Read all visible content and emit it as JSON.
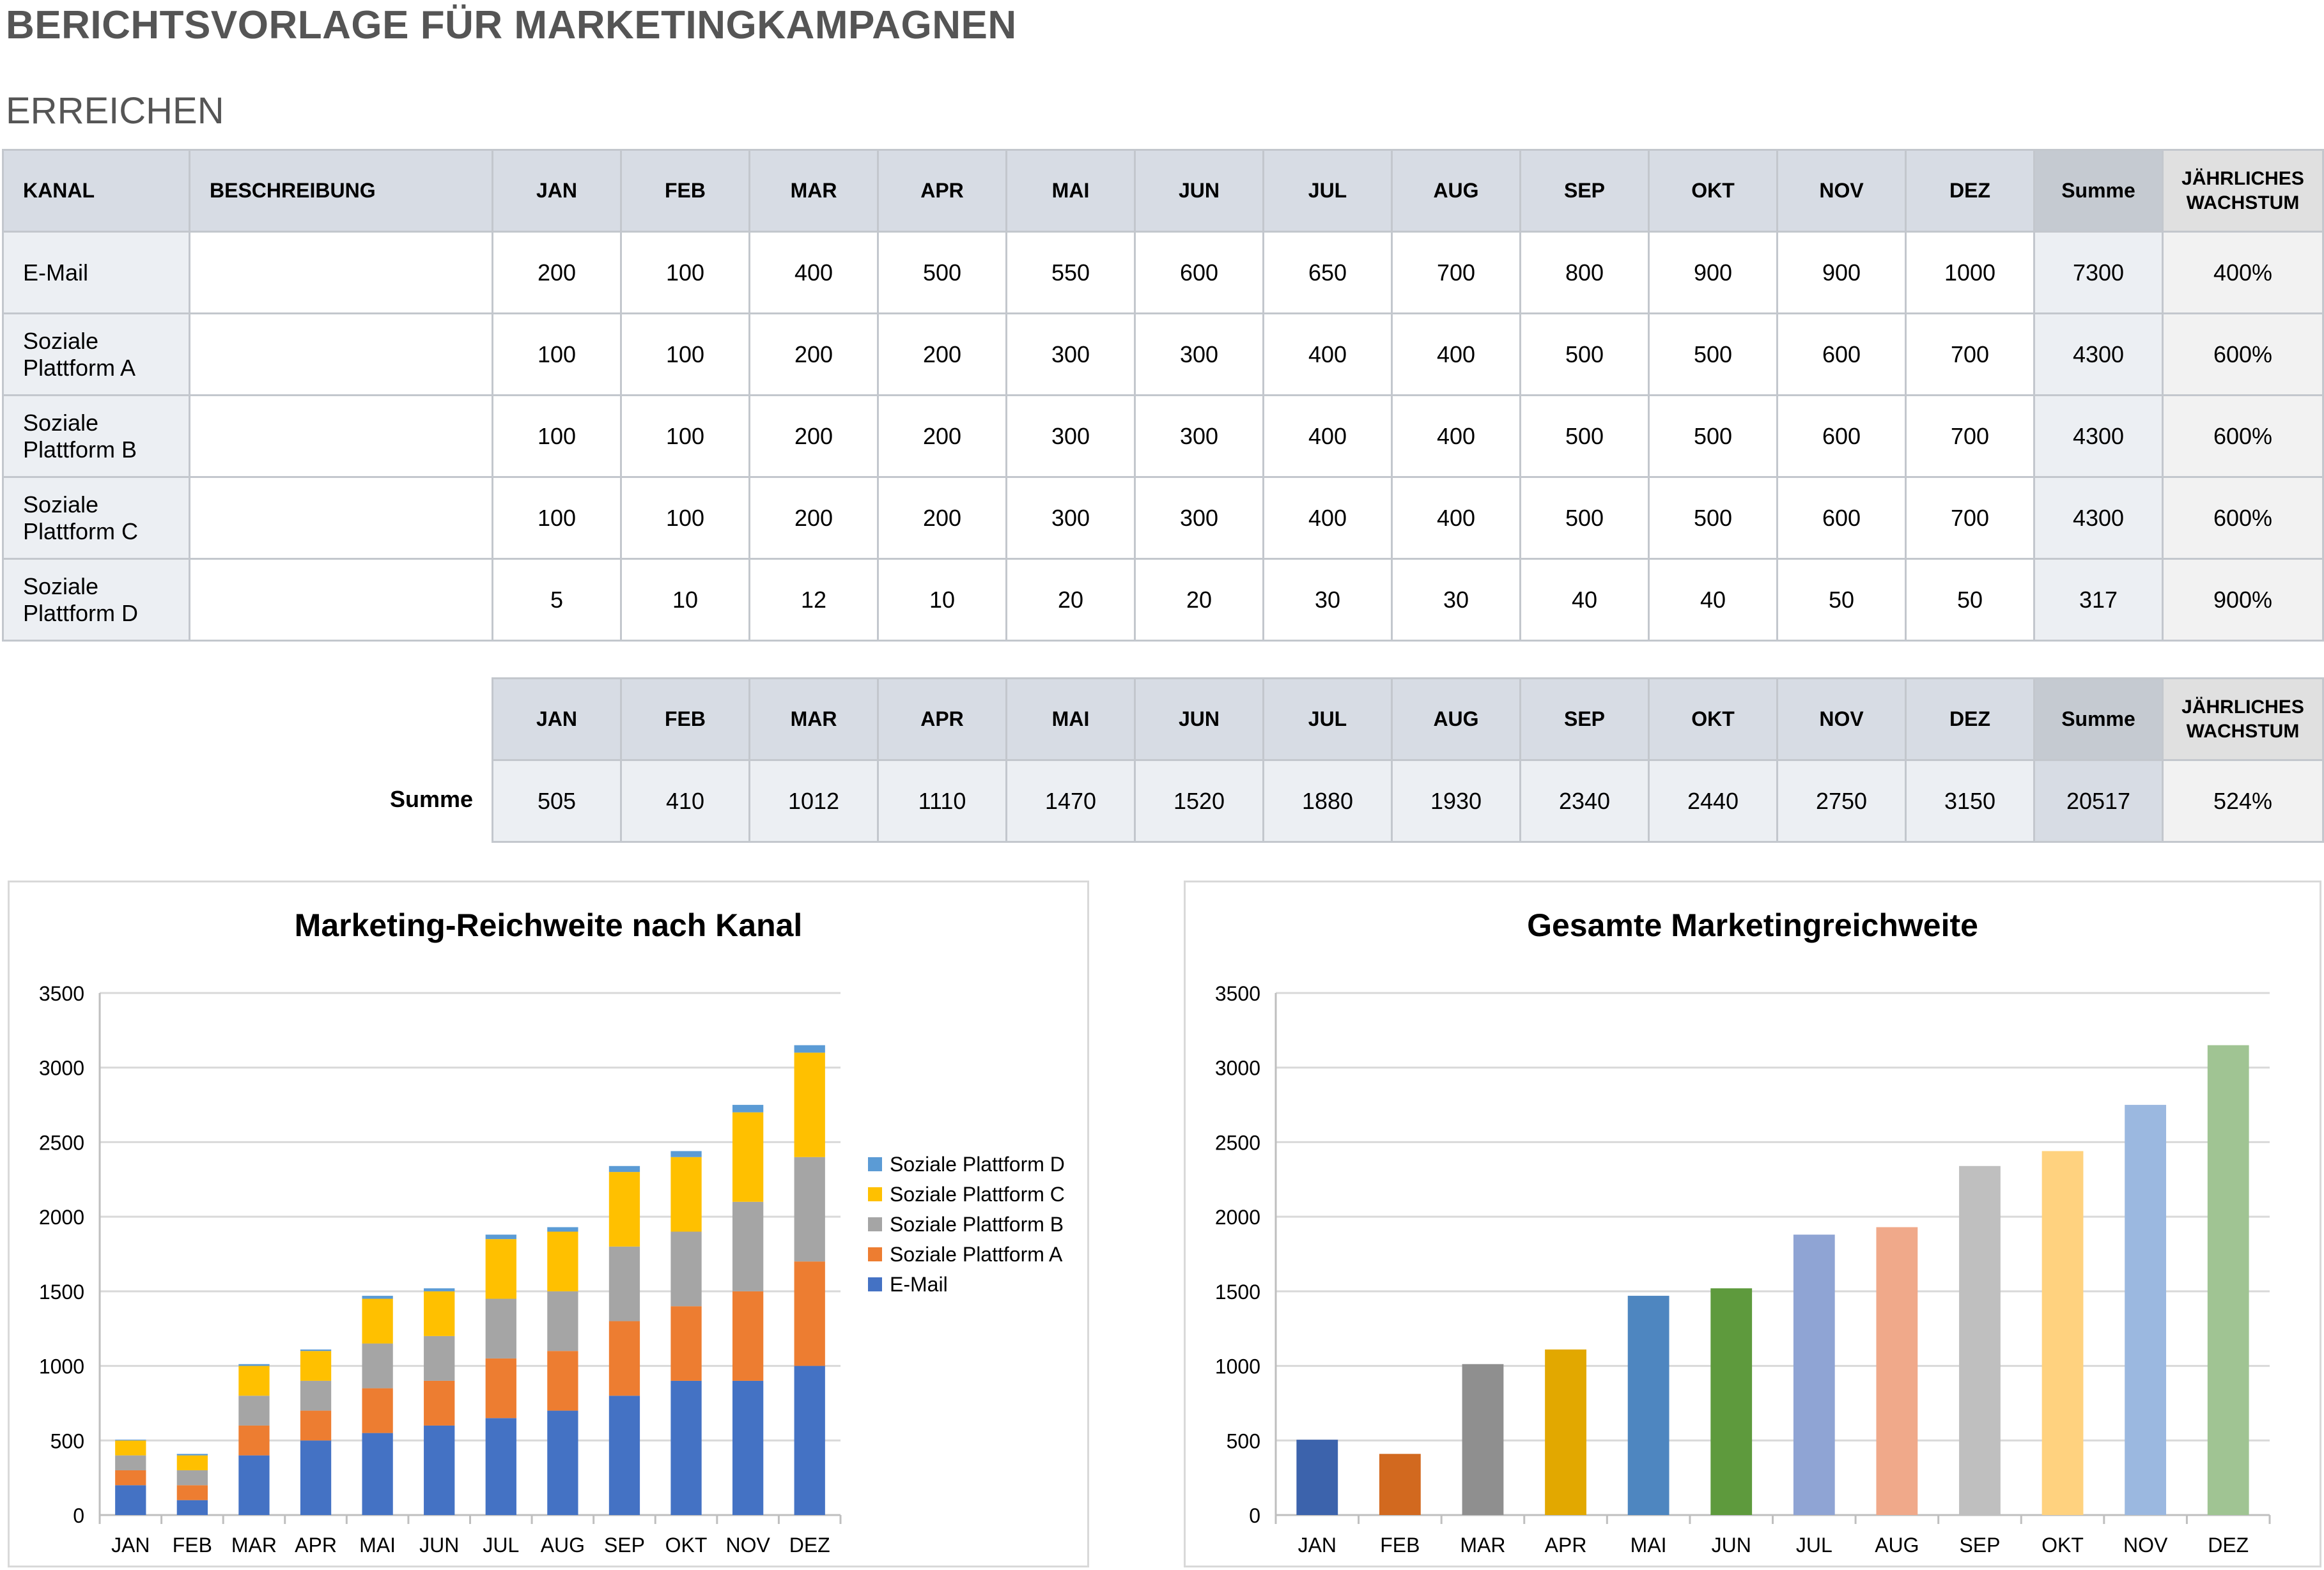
{
  "page": {
    "title": "BERICHTSVORLAGE FÜR MARKETINGKAMPAGNEN",
    "section": "ERREICHEN"
  },
  "table": {
    "headers": {
      "kanal": "KANAL",
      "beschreibung": "BESCHREIBUNG",
      "months": [
        "JAN",
        "FEB",
        "MAR",
        "APR",
        "MAI",
        "JUN",
        "JUL",
        "AUG",
        "SEP",
        "OKT",
        "NOV",
        "DEZ"
      ],
      "summe": "Summe",
      "wachstum_1": "JÄHRLICHES",
      "wachstum_2": "WACHSTUM"
    },
    "rows": [
      {
        "kanal_1": "E-Mail",
        "kanal_2": "",
        "beschreibung": "",
        "values": [
          "200",
          "100",
          "400",
          "500",
          "550",
          "600",
          "650",
          "700",
          "800",
          "900",
          "900",
          "1000"
        ],
        "summe": "7300",
        "wachstum": "400%"
      },
      {
        "kanal_1": "Soziale",
        "kanal_2": "Plattform A",
        "beschreibung": "",
        "values": [
          "100",
          "100",
          "200",
          "200",
          "300",
          "300",
          "400",
          "400",
          "500",
          "500",
          "600",
          "700"
        ],
        "summe": "4300",
        "wachstum": "600%"
      },
      {
        "kanal_1": "Soziale",
        "kanal_2": "Plattform B",
        "beschreibung": "",
        "values": [
          "100",
          "100",
          "200",
          "200",
          "300",
          "300",
          "400",
          "400",
          "500",
          "500",
          "600",
          "700"
        ],
        "summe": "4300",
        "wachstum": "600%"
      },
      {
        "kanal_1": "Soziale",
        "kanal_2": "Plattform C",
        "beschreibung": "",
        "values": [
          "100",
          "100",
          "200",
          "200",
          "300",
          "300",
          "400",
          "400",
          "500",
          "500",
          "600",
          "700"
        ],
        "summe": "4300",
        "wachstum": "600%"
      },
      {
        "kanal_1": "Soziale",
        "kanal_2": "Plattform D",
        "beschreibung": "",
        "values": [
          "5",
          "10",
          "12",
          "10",
          "20",
          "20",
          "30",
          "30",
          "40",
          "40",
          "50",
          "50"
        ],
        "summe": "317",
        "wachstum": "900%"
      }
    ]
  },
  "totals": {
    "label": "Summe",
    "values": [
      "505",
      "410",
      "1012",
      "1110",
      "1470",
      "1520",
      "1880",
      "1930",
      "2340",
      "2440",
      "2750",
      "3150"
    ],
    "summe": "20517",
    "wachstum": "524%"
  },
  "chart_data": [
    {
      "type": "bar",
      "stacked": true,
      "title": "Marketing-Reichweite nach Kanal",
      "categories": [
        "JAN",
        "FEB",
        "MAR",
        "APR",
        "MAI",
        "JUN",
        "JUL",
        "AUG",
        "SEP",
        "OKT",
        "NOV",
        "DEZ"
      ],
      "ylim": [
        0,
        3500
      ],
      "yticks": [
        0,
        500,
        1000,
        1500,
        2000,
        2500,
        3000,
        3500
      ],
      "grid": true,
      "legend_position": "right",
      "series": [
        {
          "name": "E-Mail",
          "color": "#4472c4",
          "values": [
            200,
            100,
            400,
            500,
            550,
            600,
            650,
            700,
            800,
            900,
            900,
            1000
          ]
        },
        {
          "name": "Soziale Plattform A",
          "color": "#ed7d31",
          "values": [
            100,
            100,
            200,
            200,
            300,
            300,
            400,
            400,
            500,
            500,
            600,
            700
          ]
        },
        {
          "name": "Soziale Plattform B",
          "color": "#a5a5a5",
          "values": [
            100,
            100,
            200,
            200,
            300,
            300,
            400,
            400,
            500,
            500,
            600,
            700
          ]
        },
        {
          "name": "Soziale Plattform C",
          "color": "#ffc000",
          "values": [
            100,
            100,
            200,
            200,
            300,
            300,
            400,
            400,
            500,
            500,
            600,
            700
          ]
        },
        {
          "name": "Soziale Plattform D",
          "color": "#5b9bd5",
          "values": [
            5,
            10,
            12,
            10,
            20,
            20,
            30,
            30,
            40,
            40,
            50,
            50
          ]
        }
      ]
    },
    {
      "type": "bar",
      "title": "Gesamte Marketingreichweite",
      "categories": [
        "JAN",
        "FEB",
        "MAR",
        "APR",
        "MAI",
        "JUN",
        "JUL",
        "AUG",
        "SEP",
        "OKT",
        "NOV",
        "DEZ"
      ],
      "ylim": [
        0,
        3500
      ],
      "yticks": [
        0,
        500,
        1000,
        1500,
        2000,
        2500,
        3000,
        3500
      ],
      "grid": true,
      "values": [
        505,
        410,
        1012,
        1110,
        1470,
        1520,
        1880,
        1930,
        2340,
        2440,
        2750,
        3150
      ],
      "colors": [
        "#3c63ac",
        "#d2691f",
        "#8f8f8f",
        "#e2a800",
        "#4e86c0",
        "#5e9a3d",
        "#8fa4d4",
        "#f0a98a",
        "#bfbfbf",
        "#ffd27f",
        "#9bb8e0",
        "#a0c493"
      ]
    }
  ]
}
